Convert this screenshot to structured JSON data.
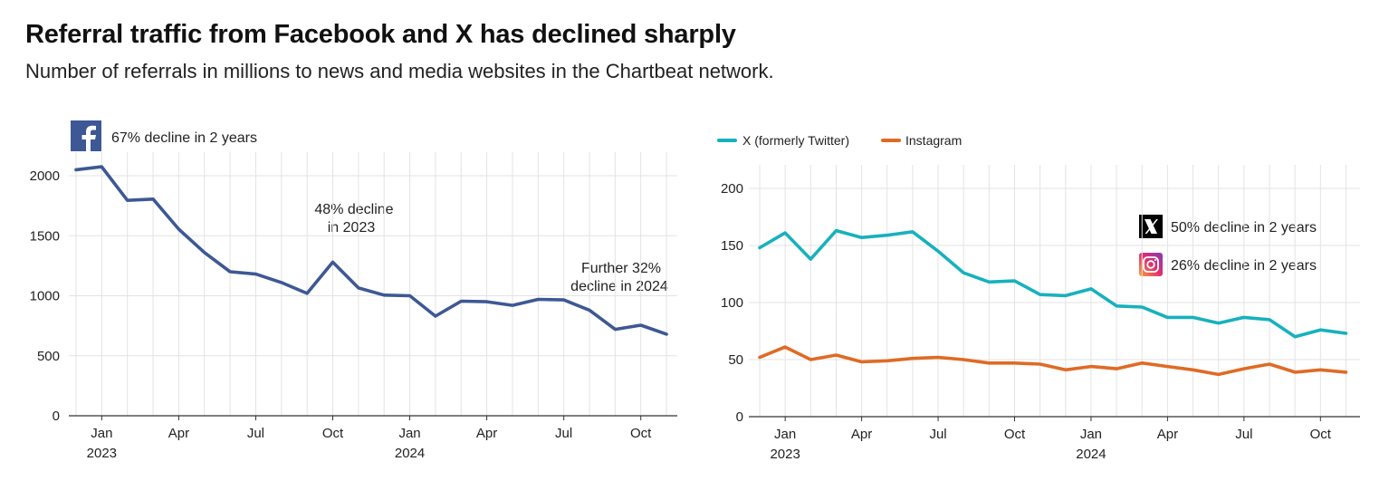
{
  "title": "Referral traffic from Facebook and X has declined sharply",
  "subtitle": "Number of referrals in millions to news and media websites in the Chartbeat network.",
  "colors": {
    "facebook": "#3d5894",
    "x": "#17b1bd",
    "instagram": "#e06a24",
    "grid": "#e3e3e3"
  },
  "chart_data": [
    {
      "type": "line",
      "name": "facebook-chart",
      "x_dates": [
        "Dec 2022",
        "Jan 2023",
        "Feb 2023",
        "Mar 2023",
        "Apr 2023",
        "May 2023",
        "Jun 2023",
        "Jul 2023",
        "Aug 2023",
        "Sep 2023",
        "Oct 2023",
        "Nov 2023",
        "Dec 2023",
        "Jan 2024",
        "Feb 2024",
        "Mar 2024",
        "Apr 2024",
        "May 2024",
        "Jun 2024",
        "Jul 2024",
        "Aug 2024",
        "Sep 2024",
        "Oct 2024",
        "Nov 2024"
      ],
      "series": [
        {
          "name": "Facebook",
          "color": "#3d5894",
          "values": [
            2050,
            2075,
            1795,
            1805,
            1555,
            1360,
            1200,
            1180,
            1110,
            1020,
            1280,
            1065,
            1005,
            1000,
            830,
            955,
            950,
            920,
            970,
            965,
            880,
            720,
            755,
            680
          ]
        }
      ],
      "xticks": [
        {
          "index": 1,
          "label": "Jan",
          "year": "2023"
        },
        {
          "index": 4,
          "label": "Apr"
        },
        {
          "index": 7,
          "label": "Jul"
        },
        {
          "index": 10,
          "label": "Oct"
        },
        {
          "index": 13,
          "label": "Jan",
          "year": "2024"
        },
        {
          "index": 16,
          "label": "Apr"
        },
        {
          "index": 19,
          "label": "Jul"
        },
        {
          "index": 22,
          "label": "Oct"
        }
      ],
      "yticks": [
        0,
        500,
        1000,
        1500,
        2000
      ],
      "ylim": [
        0,
        2150
      ],
      "header_label": "67% decline in 2 years",
      "annotations": [
        {
          "lines": [
            "48% decline",
            "in 2023"
          ]
        },
        {
          "lines": [
            "Further 32%",
            "decline in 2024"
          ]
        }
      ]
    },
    {
      "type": "line",
      "name": "x-instagram-chart",
      "x_dates": [
        "Dec 2022",
        "Jan 2023",
        "Feb 2023",
        "Mar 2023",
        "Apr 2023",
        "May 2023",
        "Jun 2023",
        "Jul 2023",
        "Aug 2023",
        "Sep 2023",
        "Oct 2023",
        "Nov 2023",
        "Dec 2023",
        "Jan 2024",
        "Feb 2024",
        "Mar 2024",
        "Apr 2024",
        "May 2024",
        "Jun 2024",
        "Jul 2024",
        "Aug 2024",
        "Sep 2024",
        "Oct 2024",
        "Nov 2024"
      ],
      "series": [
        {
          "name": "X (formerly Twitter)",
          "color": "#17b1bd",
          "values": [
            148,
            161,
            138,
            163,
            157,
            159,
            162,
            145,
            126,
            118,
            119,
            107,
            106,
            112,
            97,
            96,
            87,
            87,
            82,
            87,
            85,
            70,
            76,
            73
          ]
        },
        {
          "name": "Instagram",
          "color": "#e06a24",
          "values": [
            52,
            61,
            50,
            54,
            48,
            49,
            51,
            52,
            50,
            47,
            47,
            46,
            41,
            44,
            42,
            47,
            44,
            41,
            37,
            42,
            46,
            39,
            41,
            39
          ]
        }
      ],
      "xticks": [
        {
          "index": 1,
          "label": "Jan",
          "year": "2023"
        },
        {
          "index": 4,
          "label": "Apr"
        },
        {
          "index": 7,
          "label": "Jul"
        },
        {
          "index": 10,
          "label": "Oct"
        },
        {
          "index": 13,
          "label": "Jan",
          "year": "2024"
        },
        {
          "index": 16,
          "label": "Apr"
        },
        {
          "index": 19,
          "label": "Jul"
        },
        {
          "index": 22,
          "label": "Oct"
        }
      ],
      "yticks": [
        0,
        50,
        100,
        150,
        200
      ],
      "ylim": [
        0,
        200
      ],
      "legend": [
        "X (formerly Twitter)",
        "Instagram"
      ],
      "annotations": [
        {
          "icon": "x-logo-icon",
          "text": "50% decline in 2 years"
        },
        {
          "icon": "instagram-icon",
          "text": "26% decline in 2 years"
        }
      ]
    }
  ]
}
